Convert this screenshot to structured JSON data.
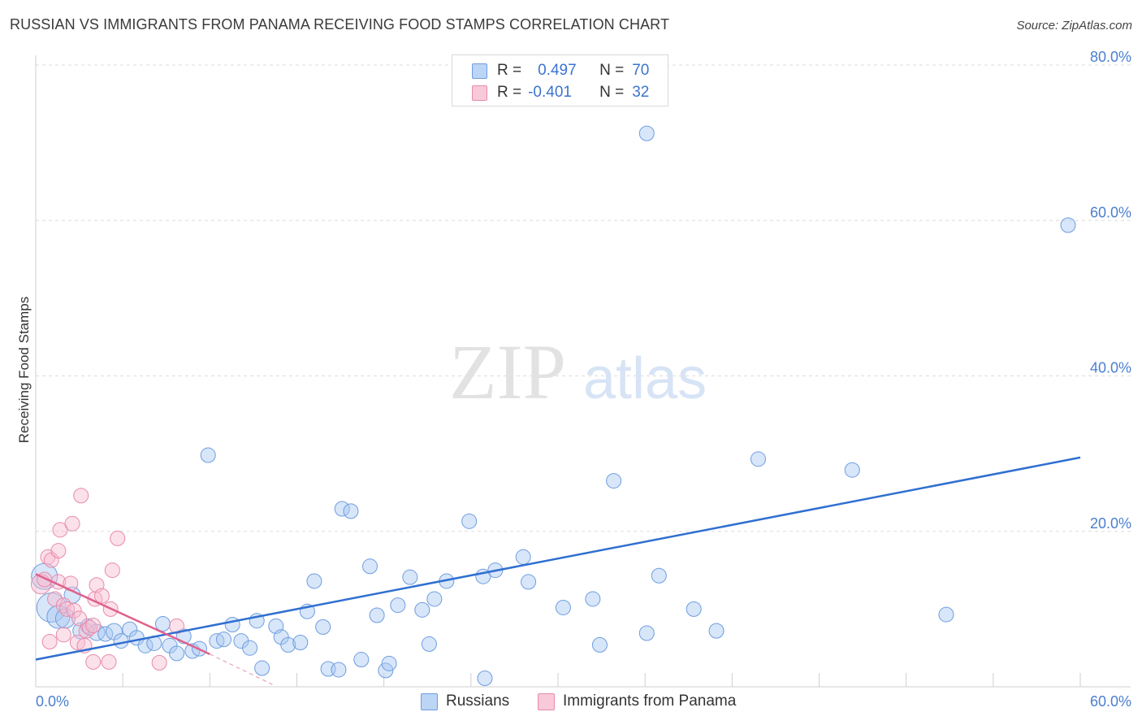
{
  "title": "RUSSIAN VS IMMIGRANTS FROM PANAMA RECEIVING FOOD STAMPS CORRELATION CHART",
  "source": "Source: ZipAtlas.com",
  "watermark": {
    "zip": "ZIP",
    "atlas": "atlas"
  },
  "legend": {
    "rows": [
      {
        "r_label": "R =",
        "r_value": "0.497",
        "n_label": "N =",
        "n_value": "70",
        "color": "#a9c8f2",
        "border": "#6d9de0"
      },
      {
        "r_label": "R =",
        "r_value": "-0.401",
        "n_label": "N =",
        "n_value": "32",
        "color": "#f6bcd0",
        "border": "#e88aab"
      }
    ]
  },
  "bottom_legend": {
    "russians": "Russians",
    "panama": "Immigrants from Panama"
  },
  "chart_data": {
    "type": "scatter",
    "title": "RUSSIAN VS IMMIGRANTS FROM PANAMA RECEIVING FOOD STAMPS CORRELATION CHART",
    "xlabel": "",
    "ylabel": "Receiving Food Stamps",
    "xlim": [
      0,
      60
    ],
    "ylim": [
      0,
      80
    ],
    "x_tick_labels": [
      "0.0%",
      "60.0%"
    ],
    "y_ticks": [
      20,
      40,
      60,
      80
    ],
    "y_tick_labels": [
      "20.0%",
      "40.0%",
      "60.0%",
      "80.0%"
    ],
    "grid": true,
    "series": [
      {
        "name": "Russians",
        "color": "#6d9de0",
        "fill": "rgba(169,200,242,0.45)",
        "trend": {
          "x": [
            0,
            60
          ],
          "y": [
            3.5,
            29.5
          ],
          "color": "#2f6fd0"
        },
        "points": [
          [
            0.5,
            14.2,
            16
          ],
          [
            0.9,
            10.2,
            18
          ],
          [
            1.3,
            9.0,
            14
          ],
          [
            1.7,
            8.8,
            12
          ],
          [
            2.1,
            11.8,
            10
          ],
          [
            2.6,
            7.2,
            10
          ],
          [
            3.0,
            7.8,
            9
          ],
          [
            3.5,
            7.0,
            10
          ],
          [
            4.0,
            6.8,
            9
          ],
          [
            4.5,
            7.1,
            10
          ],
          [
            4.9,
            5.9,
            9
          ],
          [
            5.4,
            7.4,
            9
          ],
          [
            5.8,
            6.3,
            9
          ],
          [
            6.3,
            5.3,
            9
          ],
          [
            6.8,
            5.6,
            9
          ],
          [
            7.3,
            8.1,
            9
          ],
          [
            7.7,
            5.3,
            9
          ],
          [
            8.1,
            4.3,
            9
          ],
          [
            8.5,
            6.5,
            9
          ],
          [
            9.0,
            4.6,
            9
          ],
          [
            9.4,
            4.9,
            9
          ],
          [
            9.9,
            29.8,
            9
          ],
          [
            10.4,
            5.9,
            9
          ],
          [
            10.8,
            6.1,
            9
          ],
          [
            11.3,
            8.0,
            9
          ],
          [
            11.8,
            5.9,
            9
          ],
          [
            12.3,
            5.0,
            9
          ],
          [
            12.7,
            8.5,
            9
          ],
          [
            13.0,
            2.4,
            9
          ],
          [
            13.8,
            7.8,
            9
          ],
          [
            14.1,
            6.4,
            9
          ],
          [
            14.5,
            5.4,
            9
          ],
          [
            15.2,
            5.7,
            9
          ],
          [
            15.6,
            9.7,
            9
          ],
          [
            16.0,
            13.6,
            9
          ],
          [
            16.5,
            7.7,
            9
          ],
          [
            16.8,
            2.3,
            9
          ],
          [
            17.4,
            2.2,
            9
          ],
          [
            17.6,
            22.9,
            9
          ],
          [
            18.1,
            22.6,
            9
          ],
          [
            18.7,
            3.5,
            9
          ],
          [
            19.2,
            15.5,
            9
          ],
          [
            19.6,
            9.2,
            9
          ],
          [
            20.1,
            2.1,
            9
          ],
          [
            20.3,
            3.0,
            9
          ],
          [
            20.8,
            10.5,
            9
          ],
          [
            21.5,
            14.1,
            9
          ],
          [
            22.2,
            9.9,
            9
          ],
          [
            22.6,
            5.5,
            9
          ],
          [
            22.9,
            11.3,
            9
          ],
          [
            23.6,
            13.6,
            9
          ],
          [
            24.9,
            21.3,
            9
          ],
          [
            25.8,
            1.1,
            9
          ],
          [
            25.7,
            14.2,
            9
          ],
          [
            26.4,
            15.0,
            9
          ],
          [
            28.0,
            16.7,
            9
          ],
          [
            28.3,
            13.5,
            9
          ],
          [
            30.3,
            10.2,
            9
          ],
          [
            32.0,
            11.3,
            9
          ],
          [
            32.4,
            5.4,
            9
          ],
          [
            33.2,
            26.5,
            9
          ],
          [
            35.1,
            6.9,
            9
          ],
          [
            35.1,
            71.2,
            9
          ],
          [
            35.8,
            14.3,
            9
          ],
          [
            37.8,
            10.0,
            9
          ],
          [
            39.1,
            7.2,
            9
          ],
          [
            41.5,
            29.3,
            9
          ],
          [
            46.9,
            27.9,
            9
          ],
          [
            52.3,
            9.3,
            9
          ],
          [
            59.3,
            59.4,
            9
          ]
        ]
      },
      {
        "name": "Immigrants from Panama",
        "color": "#e88aab",
        "fill": "rgba(246,188,208,0.45)",
        "trend": {
          "x": [
            0,
            10
          ],
          "y": [
            14.5,
            4.2
          ],
          "color": "#e0608c"
        },
        "trend_dashed": {
          "x": [
            10,
            13.6
          ],
          "y": [
            4.2,
            0.3
          ],
          "color": "#e9a3bb"
        },
        "points": [
          [
            0.3,
            13.2,
            12
          ],
          [
            0.5,
            13.8,
            9
          ],
          [
            0.7,
            16.7,
            9
          ],
          [
            0.9,
            16.3,
            9
          ],
          [
            1.1,
            11.3,
            9
          ],
          [
            1.3,
            13.5,
            9
          ],
          [
            1.4,
            20.2,
            9
          ],
          [
            1.3,
            17.5,
            9
          ],
          [
            1.6,
            10.5,
            9
          ],
          [
            1.8,
            10.0,
            9
          ],
          [
            2.0,
            13.3,
            9
          ],
          [
            2.1,
            21.0,
            9
          ],
          [
            2.2,
            9.8,
            9
          ],
          [
            2.4,
            5.7,
            9
          ],
          [
            2.5,
            8.8,
            9
          ],
          [
            2.6,
            24.6,
            9
          ],
          [
            2.9,
            7.2,
            9
          ],
          [
            3.1,
            7.6,
            9
          ],
          [
            3.3,
            3.2,
            9
          ],
          [
            3.4,
            11.3,
            9
          ],
          [
            3.5,
            13.1,
            9
          ],
          [
            3.8,
            11.7,
            9
          ],
          [
            4.2,
            3.2,
            9
          ],
          [
            4.3,
            10.0,
            9
          ],
          [
            4.4,
            15.0,
            9
          ],
          [
            4.7,
            19.1,
            9
          ],
          [
            7.1,
            3.1,
            9
          ],
          [
            8.1,
            7.8,
            9
          ],
          [
            0.8,
            5.8,
            9
          ],
          [
            1.6,
            6.7,
            9
          ],
          [
            2.8,
            5.3,
            9
          ],
          [
            3.3,
            7.9,
            9
          ]
        ]
      }
    ]
  }
}
